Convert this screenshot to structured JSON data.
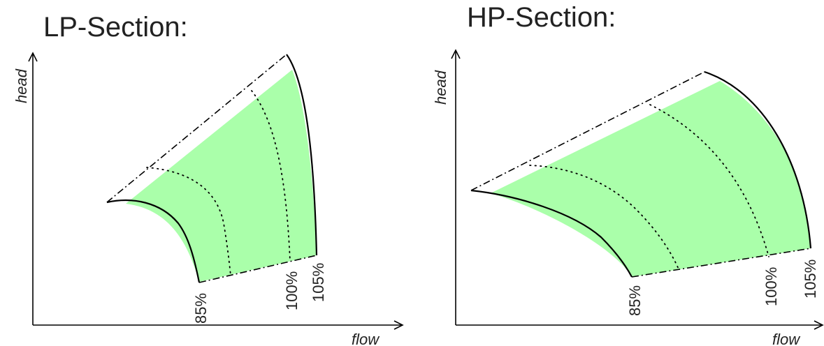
{
  "lp": {
    "title": "LP-Section:",
    "x_label": "flow",
    "y_label": "head",
    "speed_labels": [
      "85%",
      "100%",
      "105%"
    ]
  },
  "hp": {
    "title": "HP-Section:",
    "x_label": "flow",
    "y_label": "head",
    "speed_labels": [
      "85%",
      "100%",
      "105%"
    ]
  },
  "colors": {
    "operating_region": "#aaffaa",
    "lines": "#000000"
  }
}
